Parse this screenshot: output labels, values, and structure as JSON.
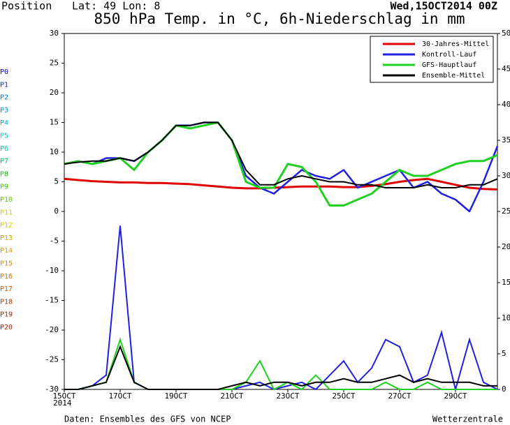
{
  "position": "Position",
  "location": "Lat: 49 Lon: 8",
  "chart_data": {
    "type": "line",
    "title": "850 hPa Temp. in °C, 6h-Niederschlag in mm",
    "date": "Wed,15OCT2014 00Z",
    "year": "2014",
    "source": "Daten: Ensembles des GFS von NCEP",
    "brand": "Wetterzentrale",
    "xlim": [
      0,
      15.5
    ],
    "xticks": [
      {
        "value": 0,
        "label": "15OCT"
      },
      {
        "value": 2,
        "label": "17OCT"
      },
      {
        "value": 4,
        "label": "19OCT"
      },
      {
        "value": 6,
        "label": "21OCT"
      },
      {
        "value": 8,
        "label": "23OCT"
      },
      {
        "value": 10,
        "label": "25OCT"
      },
      {
        "value": 12,
        "label": "27OCT"
      },
      {
        "value": 14,
        "label": "29OCT"
      }
    ],
    "ylim": [
      -30,
      30
    ],
    "yticks": [
      -30,
      -25,
      -20,
      -15,
      -10,
      -5,
      0,
      5,
      10,
      15,
      20,
      25,
      30
    ],
    "y2lim": [
      0,
      50
    ],
    "y2ticks": [
      0,
      5,
      10,
      15,
      20,
      25,
      30,
      35,
      40,
      45,
      50
    ],
    "legend": "top-right",
    "x": [
      0,
      0.5,
      1,
      1.5,
      2,
      2.5,
      3,
      3.5,
      4,
      4.5,
      5,
      5.5,
      6,
      6.5,
      7,
      7.5,
      8,
      8.5,
      9,
      9.5,
      10,
      10.5,
      11,
      11.5,
      12,
      12.5,
      13,
      13.5,
      14,
      14.5,
      15,
      15.5
    ],
    "series": [
      {
        "name": "30-Jahres-Mittel",
        "color": "#e00000",
        "width": 3,
        "values": [
          5.5,
          5.3,
          5.1,
          5,
          4.9,
          4.9,
          4.8,
          4.8,
          4.7,
          4.6,
          4.4,
          4.2,
          4,
          3.9,
          3.9,
          4,
          4.1,
          4.2,
          4.2,
          4.2,
          4.1,
          4.1,
          4.3,
          4.6,
          5,
          5.3,
          5.5,
          5,
          4.5,
          4,
          3.8,
          3.7
        ]
      },
      {
        "name": "Kontroll-Lauf",
        "color": "#2020e0",
        "width": 2.5,
        "values": [
          8,
          8.5,
          8,
          9,
          9,
          8.5,
          10,
          12,
          14.5,
          14.5,
          15,
          15,
          12,
          6,
          4,
          3,
          5,
          7,
          6,
          5.5,
          7,
          4,
          5,
          6,
          7,
          4,
          5,
          3,
          2,
          0,
          5,
          11
        ],
        "precip": [
          0,
          0,
          0.5,
          2,
          23,
          1,
          0,
          0,
          0,
          0,
          0,
          0,
          0,
          0.5,
          1,
          0,
          0.5,
          1,
          0,
          2,
          4,
          1,
          3,
          7,
          6,
          1,
          2,
          8,
          0,
          7,
          1,
          0
        ]
      },
      {
        "name": "GFS-Hauptlauf",
        "color": "#20d020",
        "width": 3,
        "values": [
          8,
          8.5,
          8,
          8.5,
          9,
          7,
          10,
          12,
          14.5,
          14,
          14.5,
          15,
          12,
          5,
          4,
          4,
          8,
          7.5,
          5,
          1,
          1,
          2,
          3,
          5,
          7,
          6,
          6,
          7,
          8,
          8.5,
          8.5,
          9.5
        ],
        "precip": [
          0,
          0,
          0.5,
          1,
          7,
          1,
          0,
          0,
          0,
          0,
          0,
          0,
          0,
          1,
          4,
          0,
          1,
          0,
          2,
          0,
          0,
          0,
          0,
          1,
          0,
          0,
          1,
          0,
          0,
          0,
          0,
          0
        ]
      },
      {
        "name": "Ensemble-Mittel",
        "color": "#000000",
        "width": 2,
        "values": [
          8,
          8.3,
          8.5,
          8.5,
          9,
          8.5,
          10,
          12,
          14.5,
          14.5,
          15,
          15,
          12,
          7,
          4.5,
          4.5,
          5.5,
          6,
          5.5,
          5,
          5,
          4.5,
          4.5,
          4,
          4,
          4,
          4.5,
          4,
          4,
          4.5,
          4.5,
          5.5
        ],
        "precip": [
          0,
          0,
          0.5,
          1,
          6,
          1,
          0,
          0,
          0,
          0,
          0,
          0,
          0.5,
          1,
          0.5,
          1,
          1,
          0.5,
          1,
          1,
          1.5,
          1,
          1,
          1.5,
          2,
          1,
          1.5,
          1,
          1,
          1,
          0.5,
          0.5
        ]
      }
    ],
    "members": [
      {
        "name": "P0",
        "color": "#0000cc"
      },
      {
        "name": "P1",
        "color": "#0022ee"
      },
      {
        "name": "P2",
        "color": "#0077cc"
      },
      {
        "name": "P3",
        "color": "#0099cc"
      },
      {
        "name": "P4",
        "color": "#00aacc"
      },
      {
        "name": "P5",
        "color": "#00cccc"
      },
      {
        "name": "P6",
        "color": "#00ccaa"
      },
      {
        "name": "P7",
        "color": "#00cc66"
      },
      {
        "name": "P8",
        "color": "#00cc00"
      },
      {
        "name": "P9",
        "color": "#33cc00"
      },
      {
        "name": "P10",
        "color": "#66cc00"
      },
      {
        "name": "P11",
        "color": "#cccc00"
      },
      {
        "name": "P12",
        "color": "#ddcc00"
      },
      {
        "name": "P13",
        "color": "#ddaa00"
      },
      {
        "name": "P14",
        "color": "#dd9900"
      },
      {
        "name": "P15",
        "color": "#dd8800"
      },
      {
        "name": "P16",
        "color": "#cc7700"
      },
      {
        "name": "P17",
        "color": "#cc5500"
      },
      {
        "name": "P18",
        "color": "#bb3300"
      },
      {
        "name": "P19",
        "color": "#aa2200"
      },
      {
        "name": "P20",
        "color": "#992200"
      }
    ]
  }
}
